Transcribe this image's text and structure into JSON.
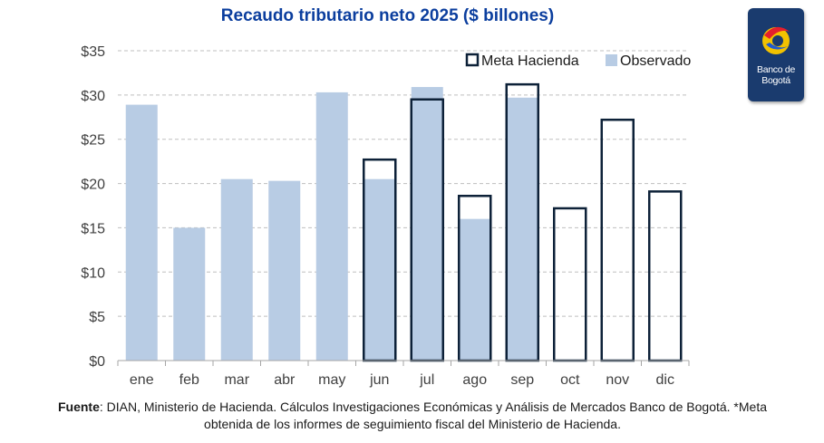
{
  "chart_data": {
    "type": "bar",
    "title": "Recaudo tributario neto 2025 ($ billones)",
    "categories": [
      "ene",
      "feb",
      "mar",
      "abr",
      "may",
      "jun",
      "jul",
      "ago",
      "sep",
      "oct",
      "nov",
      "dic"
    ],
    "series": [
      {
        "name": "Meta Hacienda",
        "style": "outline",
        "values": [
          null,
          null,
          null,
          null,
          null,
          22.7,
          29.5,
          18.6,
          31.2,
          17.2,
          27.2,
          19.1
        ]
      },
      {
        "name": "Observado",
        "style": "filled",
        "values": [
          28.9,
          15.0,
          20.5,
          20.3,
          30.3,
          20.5,
          30.9,
          16.0,
          29.7,
          null,
          null,
          null
        ]
      }
    ],
    "ylim": [
      0,
      35
    ],
    "yticks": [
      0,
      5,
      10,
      15,
      20,
      25,
      30,
      35
    ],
    "ytick_labels": [
      "$0",
      "$5",
      "$10",
      "$15",
      "$20",
      "$25",
      "$30",
      "$35"
    ],
    "grid": true,
    "legend_position": "top-right",
    "colors": {
      "observado": "#b8cce4",
      "meta": "#0d2138",
      "title": "#0b3e9e",
      "grid": "#bfbfbf",
      "axis": "#a6a6a6"
    }
  },
  "footnote": {
    "label": "Fuente",
    "text": ": DIAN, Ministerio de Hacienda. Cálculos Investigaciones Económicas y Análisis de Mercados Banco de Bogotá. *Meta obtenida de los informes de seguimiento fiscal del Ministerio de Hacienda."
  },
  "logo": {
    "line1": "Banco de",
    "line2": "Bogotá",
    "icon": "banco-de-bogota-logo-icon"
  }
}
